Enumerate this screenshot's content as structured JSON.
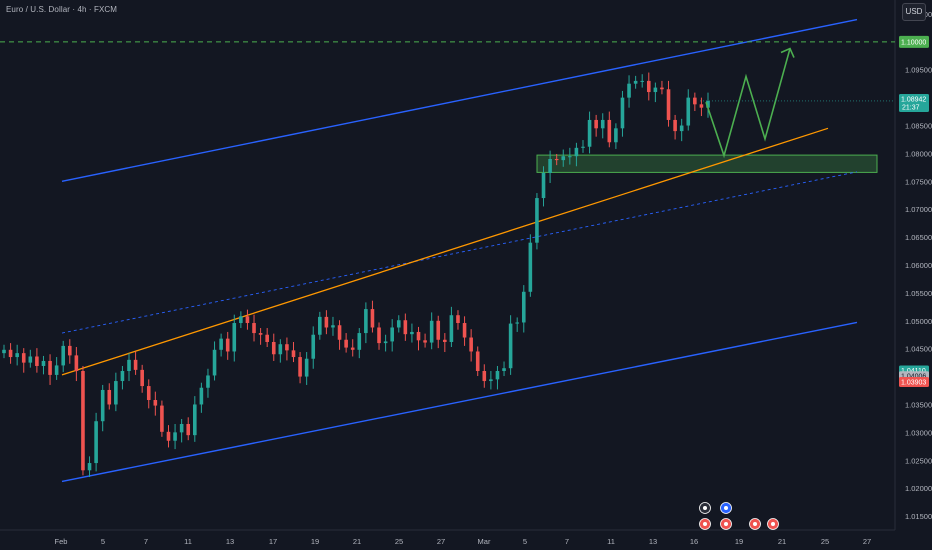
{
  "header": {
    "symbol_title": "Euro / U.S. Dollar · 4h · FXCM",
    "currency_button": "USD"
  },
  "colors": {
    "background": "#131722",
    "up": "#26a69a",
    "down": "#ef5350",
    "channel": "#2962ff",
    "trendline": "#ff9800",
    "target_line": "#4caf50",
    "zone": "#4caf50",
    "projection": "#4caf50"
  },
  "chart_data": {
    "type": "candlestick",
    "timeframe": "4h",
    "ylim": [
      1.0125,
      1.1075
    ],
    "y_ticks": [
      "1.10500",
      "1.09500",
      "1.08500",
      "1.08000",
      "1.07500",
      "1.07000",
      "1.06500",
      "1.06000",
      "1.05500",
      "1.05000",
      "1.04500",
      "1.03500",
      "1.03000",
      "1.02500",
      "1.02000",
      "1.01500"
    ],
    "x_ticks": [
      "Feb",
      "5",
      "7",
      "11",
      "13",
      "17",
      "19",
      "21",
      "25",
      "27",
      "Mar",
      "5",
      "7",
      "11",
      "13",
      "16",
      "19",
      "21",
      "25",
      "27"
    ],
    "price_labels": {
      "target": "1.10000",
      "current_price": "1.08942",
      "countdown": "21:37",
      "level_a": "1.04110",
      "level_b": "1.04006",
      "level_c": "1.03903"
    },
    "closes": [
      1.0448,
      1.0435,
      1.0442,
      1.0425,
      1.0436,
      1.0419,
      1.0428,
      1.0403,
      1.042,
      1.0455,
      1.0438,
      1.041,
      1.0232,
      1.0245,
      1.032,
      1.0376,
      1.035,
      1.0392,
      1.041,
      1.043,
      1.0412,
      1.0383,
      1.0358,
      1.0348,
      1.0301,
      1.0285,
      1.03,
      1.0315,
      1.0295,
      1.035,
      1.038,
      1.0402,
      1.0448,
      1.0468,
      1.0445,
      1.0496,
      1.0508,
      1.0496,
      1.0478,
      1.0475,
      1.0462,
      1.044,
      1.0458,
      1.0447,
      1.0435,
      1.04,
      1.0432,
      1.0475,
      1.0507,
      1.0488,
      1.0492,
      1.0466,
      1.0452,
      1.0448,
      1.0478,
      1.0521,
      1.0488,
      1.046,
      1.0463,
      1.0488,
      1.0501,
      1.0476,
      1.048,
      1.0465,
      1.0461,
      1.05,
      1.0466,
      1.0462,
      1.051,
      1.0496,
      1.047,
      1.0445,
      1.041,
      1.0392,
      1.0395,
      1.041,
      1.0415,
      1.0495,
      1.0497,
      1.0552,
      1.064,
      1.072,
      1.0765,
      1.079,
      1.0788,
      1.0795,
      1.0795,
      1.081,
      1.0812,
      1.086,
      1.0845,
      1.086,
      1.082,
      1.0845,
      1.09,
      1.0925,
      1.093,
      1.093,
      1.091,
      1.0918,
      1.0915,
      1.086,
      1.084,
      1.085,
      1.09,
      1.0888,
      1.0882,
      1.0894
    ],
    "projection_path": [
      1.0894,
      1.0938,
      1.0795,
      1.083,
      1.088,
      1.0826,
      1.0985
    ],
    "drawings": {
      "upper_channel": [
        [
          0,
          1.075
        ],
        [
          112,
          1.104
        ]
      ],
      "lower_channel": [
        [
          0,
          1.0212
        ],
        [
          112,
          1.0497
        ]
      ],
      "mid_dotted": [
        [
          0,
          1.0478
        ],
        [
          112,
          1.0767
        ]
      ],
      "orange_trendline": [
        [
          0,
          1.0403
        ],
        [
          112,
          1.0845
        ]
      ],
      "demand_zone": {
        "y_top": 1.0797,
        "y_bottom": 1.0766,
        "x_start": 78
      },
      "target_level": 1.1
    }
  }
}
